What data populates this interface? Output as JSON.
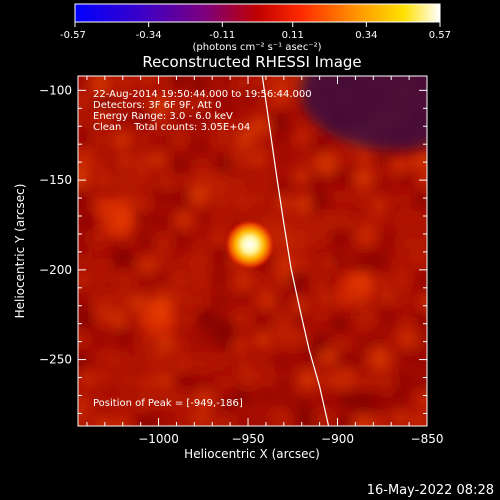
{
  "colorbar": {
    "tick_labels": [
      "-0.57",
      "-0.34",
      "-0.11",
      "0.11",
      "0.34",
      "0.57"
    ],
    "tick_values": [
      -0.57,
      -0.34,
      -0.11,
      0.11,
      0.34,
      0.57
    ],
    "range": [
      -0.57,
      0.57
    ],
    "colormap": "blue-purple-red-yellow-white",
    "units_label": "(photons cm⁻² s⁻¹ asec⁻²)"
  },
  "chart_data": {
    "type": "heatmap",
    "title": "Reconstructed RHESSI Image",
    "xlabel": "Heliocentric X (arcsec)",
    "ylabel": "Heliocentric Y (arcsec)",
    "xlim": [
      -1045,
      -850
    ],
    "ylim": [
      -287,
      -92
    ],
    "x_ticks": [
      -1000,
      -950,
      -900,
      -850
    ],
    "x_tick_labels": [
      "−1000",
      "−950",
      "−900",
      "−850"
    ],
    "y_ticks": [
      -100,
      -150,
      -200,
      -250
    ],
    "y_tick_labels": [
      "−100",
      "−150",
      "−200",
      "−250"
    ],
    "peak": {
      "x": -949,
      "y": -186,
      "value": 0.57
    },
    "secondary_sources": [
      {
        "x": -1025,
        "y": -172,
        "value": 0.22
      },
      {
        "x": -1000,
        "y": -228,
        "value": 0.2
      },
      {
        "x": -890,
        "y": -212,
        "value": 0.18
      }
    ],
    "background_level": 0.15,
    "annotations": [
      "22-Aug-2014 19:50:44.000 to 19:56:44.000",
      "Detectors: 3F 6F 9F, Att 0",
      "Energy Range: 3.0 - 6.0 keV",
      "Clean    Total counts: 3.05E+04",
      "Position of Peak = [-949,-186]"
    ],
    "limb_curve": {
      "x": [
        -942,
        -938,
        -934,
        -930,
        -926,
        -921,
        -916,
        -910,
        -905
      ],
      "y": [
        -92,
        -120,
        -148,
        -174,
        -199,
        -222,
        -244,
        -265,
        -287
      ]
    }
  },
  "footer": {
    "timestamp": "16-May-2022 08:28"
  }
}
